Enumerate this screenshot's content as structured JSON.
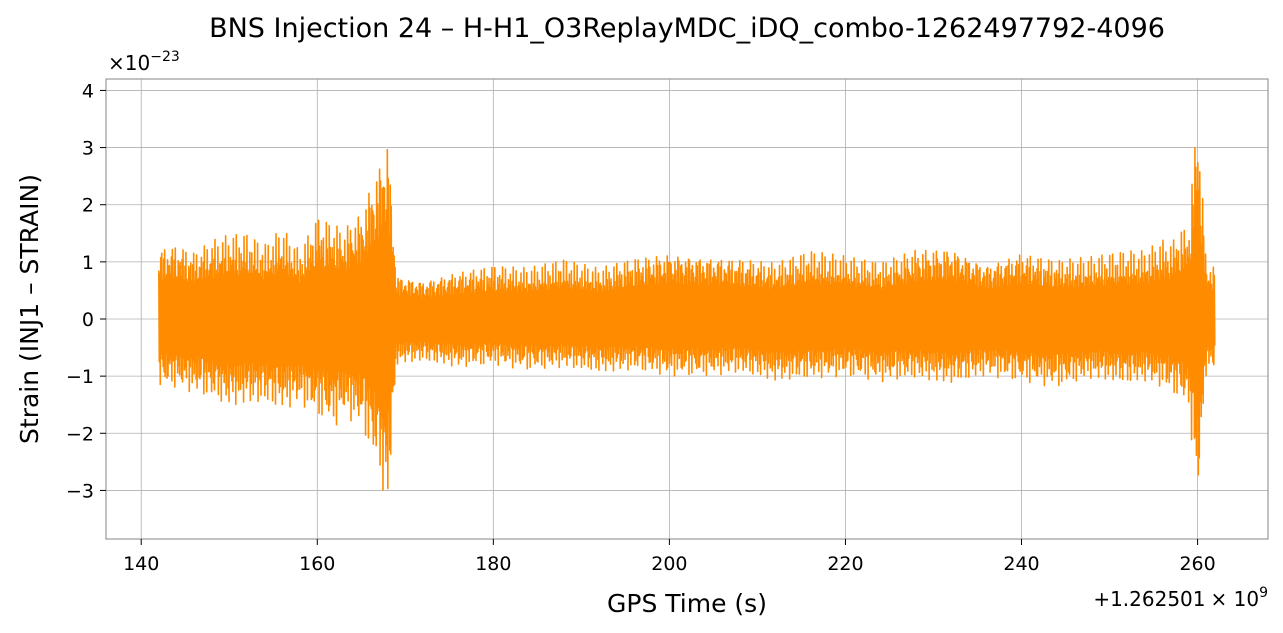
{
  "chart_data": {
    "type": "line",
    "title": "BNS Injection 24 – H-H1_O3ReplayMDC_iDQ_combo-1262497792-4096",
    "xlabel": "GPS Time (s)",
    "ylabel": "Strain (INJ1 – STRAIN)",
    "x_offset_label": "+1.262501",
    "x_offset_exponent_label": "× 10",
    "x_offset_exponent": "9",
    "y_scale_label": "×10",
    "y_scale_exponent": "−23",
    "xlim": [
      136,
      268
    ],
    "ylim": [
      -3.85,
      4.2
    ],
    "x_ticks": [
      140,
      160,
      180,
      200,
      220,
      240,
      260
    ],
    "x_tick_labels": [
      "140",
      "160",
      "180",
      "200",
      "220",
      "240",
      "260"
    ],
    "y_ticks": [
      -3,
      -2,
      -1,
      0,
      1,
      2,
      3,
      4
    ],
    "y_tick_labels": [
      "−3",
      "−2",
      "−1",
      "0",
      "1",
      "2",
      "3",
      "4"
    ],
    "grid": true,
    "series": [
      {
        "color": "#ff8c00",
        "x": [
          142,
          144,
          146,
          148,
          150,
          152,
          154,
          156,
          158,
          160,
          162,
          163,
          164,
          165,
          166,
          167,
          168,
          169,
          172,
          176,
          180,
          184,
          188,
          192,
          196,
          200,
          204,
          208,
          212,
          216,
          220,
          224,
          228,
          232,
          236,
          240,
          244,
          248,
          252,
          254,
          256,
          257,
          258,
          259,
          260,
          261,
          262
        ],
        "upper": [
          1.3,
          1.35,
          1.2,
          1.4,
          1.5,
          1.5,
          1.3,
          1.6,
          1.2,
          1.8,
          1.7,
          1.6,
          1.8,
          1.9,
          2.4,
          2.8,
          3.35,
          0.8,
          0.7,
          0.85,
          0.95,
          0.9,
          1.05,
          0.9,
          1.1,
          1.2,
          1.15,
          1.1,
          1.0,
          1.2,
          1.1,
          1.0,
          1.25,
          1.3,
          1.0,
          1.2,
          1.05,
          1.1,
          1.2,
          1.2,
          1.4,
          1.35,
          1.6,
          1.65,
          3.9,
          1.0,
          0.95
        ],
        "lower": [
          -1.2,
          -1.2,
          -1.3,
          -1.4,
          -1.55,
          -1.5,
          -1.5,
          -1.6,
          -1.5,
          -1.7,
          -1.9,
          -1.7,
          -1.8,
          -1.9,
          -2.3,
          -2.7,
          -3.5,
          -0.8,
          -0.75,
          -0.85,
          -0.8,
          -0.9,
          -0.85,
          -0.95,
          -0.9,
          -1.0,
          -1.0,
          -0.95,
          -1.1,
          -1.05,
          -1.0,
          -1.1,
          -1.05,
          -1.15,
          -1.0,
          -1.1,
          -1.2,
          -1.05,
          -1.15,
          -1.1,
          -1.2,
          -1.3,
          -1.4,
          -1.6,
          -3.3,
          -0.9,
          -0.9
        ]
      }
    ]
  }
}
